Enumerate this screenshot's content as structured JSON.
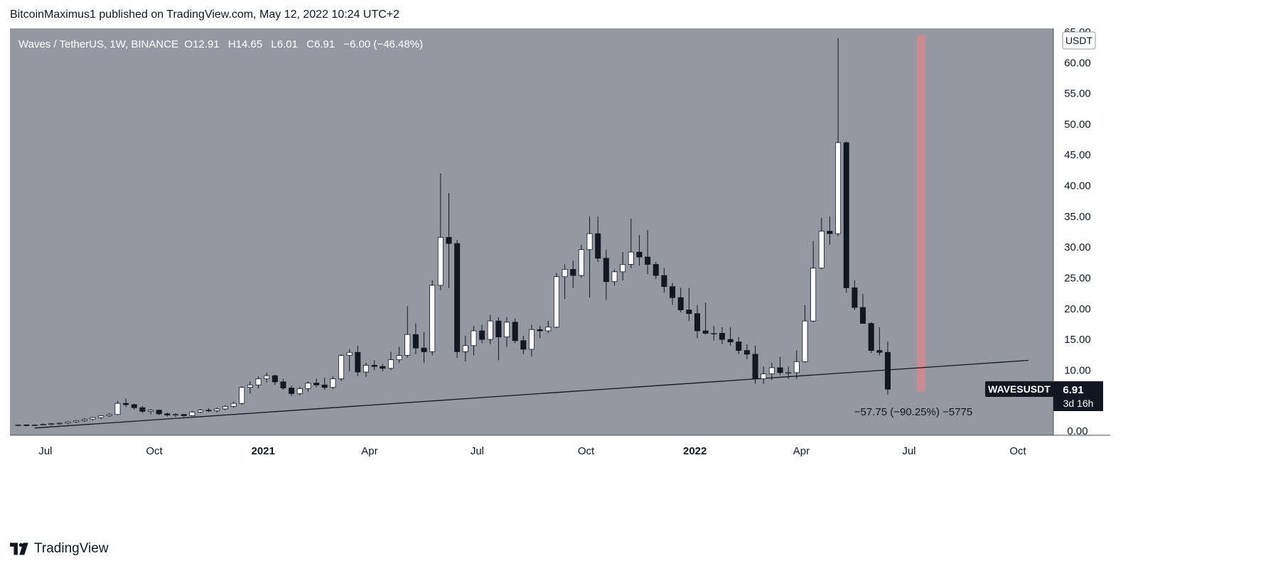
{
  "header": {
    "publisher": "BitcoinMaximus1",
    "published_text": "published on TradingView.com, May 12, 2022 10:24 UTC+2"
  },
  "legend": {
    "symbol": "Waves / TetherUS, 1W, BINANCE",
    "o_key": "O",
    "o_val": "12.91",
    "h_key": "H",
    "h_val": "14.65",
    "l_key": "L",
    "l_val": "6.01",
    "c_key": "C",
    "c_val": "6.91",
    "change": "−6.00 (−46.48%)"
  },
  "price_axis": {
    "currency": "USDT",
    "ticks": [
      "0.00",
      "10.00",
      "15.00",
      "20.00",
      "25.00",
      "30.00",
      "35.00",
      "40.00",
      "45.00",
      "50.00",
      "55.00",
      "60.00",
      "65.00"
    ]
  },
  "time_axis": {
    "labels": [
      {
        "label": "Jul",
        "bold": false
      },
      {
        "label": "Oct",
        "bold": false
      },
      {
        "label": "2021",
        "bold": true
      },
      {
        "label": "Apr",
        "bold": false
      },
      {
        "label": "Jul",
        "bold": false
      },
      {
        "label": "Oct",
        "bold": false
      },
      {
        "label": "2022",
        "bold": true
      },
      {
        "label": "Apr",
        "bold": false
      },
      {
        "label": "Jul",
        "bold": false
      },
      {
        "label": "Oct",
        "bold": false
      }
    ]
  },
  "symbol_tag": {
    "name": "WAVESUSDT",
    "price": "6.91",
    "countdown": "3d 16h"
  },
  "measure_label": "−57.75 (−90.25%) −5775",
  "footer": {
    "brand": "TradingView"
  },
  "colors": {
    "plot_bg": "#9598a1",
    "up_candle": "#ffffff",
    "down_candle": "#131722",
    "trendline": "#131722",
    "highlight": "#e0868e",
    "axis_bg": "#ffffff",
    "label_bg": "#131722"
  },
  "chart_data": {
    "type": "candlestick",
    "interval": "1W",
    "ylim": [
      0,
      65
    ],
    "x_start": "2020-06-01",
    "x_end": "2022-10-31",
    "candles": [
      {
        "o": 1.0,
        "h": 1.2,
        "l": 0.9,
        "c": 1.1
      },
      {
        "o": 1.1,
        "h": 1.2,
        "l": 0.9,
        "c": 1.0
      },
      {
        "o": 1.0,
        "h": 1.2,
        "l": 0.9,
        "c": 1.1
      },
      {
        "o": 1.1,
        "h": 1.3,
        "l": 1.0,
        "c": 1.2
      },
      {
        "o": 1.2,
        "h": 1.4,
        "l": 1.0,
        "c": 1.3
      },
      {
        "o": 1.3,
        "h": 1.5,
        "l": 1.1,
        "c": 1.4
      },
      {
        "o": 1.4,
        "h": 1.7,
        "l": 1.2,
        "c": 1.6
      },
      {
        "o": 1.6,
        "h": 1.9,
        "l": 1.4,
        "c": 1.8
      },
      {
        "o": 1.8,
        "h": 2.2,
        "l": 1.6,
        "c": 2.0
      },
      {
        "o": 2.0,
        "h": 2.4,
        "l": 1.8,
        "c": 2.3
      },
      {
        "o": 2.3,
        "h": 2.7,
        "l": 2.0,
        "c": 2.6
      },
      {
        "o": 2.6,
        "h": 3.0,
        "l": 2.4,
        "c": 2.8
      },
      {
        "o": 2.8,
        "h": 5.0,
        "l": 2.7,
        "c": 4.6
      },
      {
        "o": 4.6,
        "h": 5.4,
        "l": 4.0,
        "c": 4.4
      },
      {
        "o": 4.4,
        "h": 4.6,
        "l": 3.6,
        "c": 3.9
      },
      {
        "o": 3.9,
        "h": 4.2,
        "l": 3.0,
        "c": 3.3
      },
      {
        "o": 3.3,
        "h": 3.7,
        "l": 2.8,
        "c": 3.5
      },
      {
        "o": 3.5,
        "h": 3.6,
        "l": 2.7,
        "c": 2.9
      },
      {
        "o": 2.9,
        "h": 3.1,
        "l": 2.5,
        "c": 2.7
      },
      {
        "o": 2.7,
        "h": 3.0,
        "l": 2.4,
        "c": 2.8
      },
      {
        "o": 2.8,
        "h": 2.9,
        "l": 2.4,
        "c": 2.6
      },
      {
        "o": 2.6,
        "h": 3.4,
        "l": 2.5,
        "c": 3.2
      },
      {
        "o": 3.2,
        "h": 3.7,
        "l": 3.0,
        "c": 3.5
      },
      {
        "o": 3.5,
        "h": 3.8,
        "l": 3.2,
        "c": 3.4
      },
      {
        "o": 3.4,
        "h": 3.9,
        "l": 3.1,
        "c": 3.7
      },
      {
        "o": 3.7,
        "h": 4.3,
        "l": 3.5,
        "c": 4.1
      },
      {
        "o": 4.1,
        "h": 4.9,
        "l": 3.9,
        "c": 4.6
      },
      {
        "o": 4.6,
        "h": 7.4,
        "l": 4.4,
        "c": 7.2
      },
      {
        "o": 7.2,
        "h": 8.2,
        "l": 6.2,
        "c": 7.6
      },
      {
        "o": 7.6,
        "h": 9.0,
        "l": 7.0,
        "c": 8.6
      },
      {
        "o": 8.6,
        "h": 9.6,
        "l": 8.0,
        "c": 9.1
      },
      {
        "o": 9.1,
        "h": 9.3,
        "l": 7.6,
        "c": 8.1
      },
      {
        "o": 8.1,
        "h": 8.6,
        "l": 6.8,
        "c": 7.1
      },
      {
        "o": 7.1,
        "h": 7.5,
        "l": 5.8,
        "c": 6.2
      },
      {
        "o": 6.2,
        "h": 7.3,
        "l": 5.9,
        "c": 7.0
      },
      {
        "o": 7.0,
        "h": 8.2,
        "l": 6.5,
        "c": 7.9
      },
      {
        "o": 7.9,
        "h": 8.6,
        "l": 7.2,
        "c": 7.6
      },
      {
        "o": 7.6,
        "h": 8.8,
        "l": 6.8,
        "c": 7.2
      },
      {
        "o": 7.2,
        "h": 9.0,
        "l": 6.9,
        "c": 8.6
      },
      {
        "o": 8.6,
        "h": 12.6,
        "l": 8.2,
        "c": 12.4
      },
      {
        "o": 12.4,
        "h": 13.4,
        "l": 9.8,
        "c": 12.9
      },
      {
        "o": 12.9,
        "h": 14.0,
        "l": 9.0,
        "c": 9.7
      },
      {
        "o": 9.7,
        "h": 11.2,
        "l": 8.9,
        "c": 10.8
      },
      {
        "o": 10.8,
        "h": 11.6,
        "l": 10.0,
        "c": 10.6
      },
      {
        "o": 10.6,
        "h": 11.0,
        "l": 9.8,
        "c": 10.3
      },
      {
        "o": 10.3,
        "h": 13.0,
        "l": 10.0,
        "c": 11.7
      },
      {
        "o": 11.7,
        "h": 13.8,
        "l": 11.2,
        "c": 12.4
      },
      {
        "o": 12.4,
        "h": 20.4,
        "l": 12.0,
        "c": 15.8
      },
      {
        "o": 15.8,
        "h": 17.6,
        "l": 12.6,
        "c": 13.6
      },
      {
        "o": 13.6,
        "h": 16.2,
        "l": 11.2,
        "c": 13.0
      },
      {
        "o": 13.0,
        "h": 24.6,
        "l": 12.4,
        "c": 23.8
      },
      {
        "o": 23.8,
        "h": 42.0,
        "l": 23.0,
        "c": 31.6
      },
      {
        "o": 31.6,
        "h": 38.8,
        "l": 23.4,
        "c": 30.6
      },
      {
        "o": 30.6,
        "h": 31.2,
        "l": 12.0,
        "c": 13.0
      },
      {
        "o": 13.0,
        "h": 15.6,
        "l": 11.4,
        "c": 14.0
      },
      {
        "o": 14.0,
        "h": 17.2,
        "l": 12.4,
        "c": 16.4
      },
      {
        "o": 16.4,
        "h": 17.4,
        "l": 14.4,
        "c": 15.0
      },
      {
        "o": 15.0,
        "h": 19.0,
        "l": 14.2,
        "c": 18.0
      },
      {
        "o": 18.0,
        "h": 18.6,
        "l": 11.6,
        "c": 15.4
      },
      {
        "o": 15.4,
        "h": 18.6,
        "l": 13.8,
        "c": 17.8
      },
      {
        "o": 17.8,
        "h": 18.4,
        "l": 14.4,
        "c": 14.8
      },
      {
        "o": 14.8,
        "h": 15.6,
        "l": 12.6,
        "c": 13.4
      },
      {
        "o": 13.4,
        "h": 17.4,
        "l": 12.2,
        "c": 16.6
      },
      {
        "o": 16.6,
        "h": 17.2,
        "l": 15.2,
        "c": 16.4
      },
      {
        "o": 16.4,
        "h": 18.0,
        "l": 16.0,
        "c": 17.0
      },
      {
        "o": 17.0,
        "h": 25.8,
        "l": 16.8,
        "c": 25.2
      },
      {
        "o": 25.2,
        "h": 27.2,
        "l": 21.6,
        "c": 26.4
      },
      {
        "o": 26.4,
        "h": 27.8,
        "l": 23.4,
        "c": 25.4
      },
      {
        "o": 25.4,
        "h": 30.4,
        "l": 25.0,
        "c": 29.6
      },
      {
        "o": 29.6,
        "h": 35.0,
        "l": 21.8,
        "c": 32.2
      },
      {
        "o": 32.2,
        "h": 35.0,
        "l": 27.6,
        "c": 28.2
      },
      {
        "o": 28.2,
        "h": 29.6,
        "l": 21.4,
        "c": 24.4
      },
      {
        "o": 24.4,
        "h": 26.4,
        "l": 23.8,
        "c": 26.0
      },
      {
        "o": 26.0,
        "h": 29.2,
        "l": 24.6,
        "c": 27.2
      },
      {
        "o": 27.2,
        "h": 34.6,
        "l": 26.6,
        "c": 29.2
      },
      {
        "o": 29.2,
        "h": 32.0,
        "l": 27.0,
        "c": 28.4
      },
      {
        "o": 28.4,
        "h": 32.8,
        "l": 25.6,
        "c": 27.2
      },
      {
        "o": 27.2,
        "h": 27.6,
        "l": 24.8,
        "c": 25.4
      },
      {
        "o": 25.4,
        "h": 26.6,
        "l": 22.6,
        "c": 23.6
      },
      {
        "o": 23.6,
        "h": 24.2,
        "l": 20.6,
        "c": 21.8
      },
      {
        "o": 21.8,
        "h": 23.4,
        "l": 19.4,
        "c": 19.8
      },
      {
        "o": 19.8,
        "h": 23.4,
        "l": 18.0,
        "c": 19.2
      },
      {
        "o": 19.2,
        "h": 20.6,
        "l": 15.2,
        "c": 16.4
      },
      {
        "o": 16.4,
        "h": 21.0,
        "l": 15.8,
        "c": 16.0
      },
      {
        "o": 16.0,
        "h": 17.2,
        "l": 14.8,
        "c": 16.0
      },
      {
        "o": 16.0,
        "h": 17.0,
        "l": 14.2,
        "c": 15.0
      },
      {
        "o": 15.0,
        "h": 17.0,
        "l": 14.0,
        "c": 14.6
      },
      {
        "o": 14.6,
        "h": 15.4,
        "l": 12.6,
        "c": 13.2
      },
      {
        "o": 13.2,
        "h": 14.2,
        "l": 11.8,
        "c": 12.6
      },
      {
        "o": 12.6,
        "h": 14.0,
        "l": 7.8,
        "c": 8.6
      },
      {
        "o": 8.6,
        "h": 10.6,
        "l": 7.8,
        "c": 9.4
      },
      {
        "o": 9.4,
        "h": 11.2,
        "l": 8.4,
        "c": 10.4
      },
      {
        "o": 10.4,
        "h": 12.2,
        "l": 9.2,
        "c": 9.6
      },
      {
        "o": 9.6,
        "h": 10.6,
        "l": 8.6,
        "c": 9.6
      },
      {
        "o": 9.6,
        "h": 13.2,
        "l": 8.6,
        "c": 11.4
      },
      {
        "o": 11.4,
        "h": 20.6,
        "l": 11.2,
        "c": 18.0
      },
      {
        "o": 18.0,
        "h": 31.0,
        "l": 17.8,
        "c": 26.6
      },
      {
        "o": 26.6,
        "h": 34.8,
        "l": 26.4,
        "c": 32.6
      },
      {
        "o": 32.6,
        "h": 35.0,
        "l": 30.4,
        "c": 32.2
      },
      {
        "o": 32.2,
        "h": 64.0,
        "l": 31.8,
        "c": 47.0
      },
      {
        "o": 47.0,
        "h": 47.2,
        "l": 22.6,
        "c": 23.4
      },
      {
        "o": 23.4,
        "h": 24.6,
        "l": 19.8,
        "c": 20.2
      },
      {
        "o": 20.2,
        "h": 22.4,
        "l": 17.6,
        "c": 17.6
      },
      {
        "o": 17.6,
        "h": 17.8,
        "l": 12.8,
        "c": 13.2
      },
      {
        "o": 13.2,
        "h": 17.0,
        "l": 12.4,
        "c": 12.9
      },
      {
        "o": 12.9,
        "h": 14.65,
        "l": 6.01,
        "c": 6.91
      }
    ],
    "trendline": [
      {
        "date": "2020-06-22",
        "value": 0.6
      },
      {
        "date": "2022-10-10",
        "value": 11.6
      }
    ],
    "highlight_range": {
      "date": "2022-07-11",
      "y0": 6.5,
      "y1": 64.5
    }
  }
}
